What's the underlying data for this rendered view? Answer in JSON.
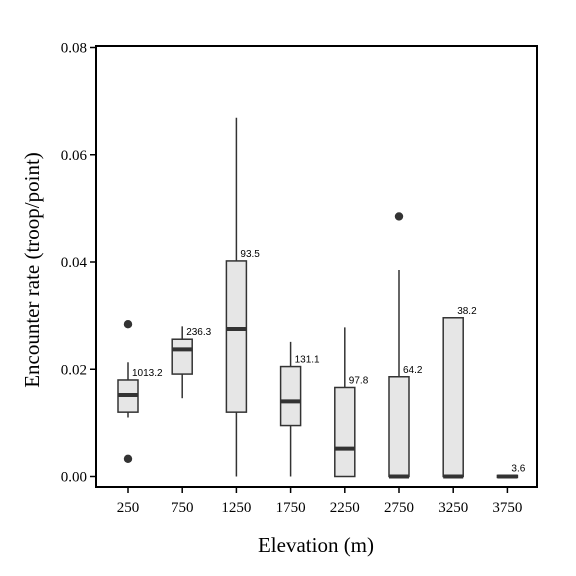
{
  "chart_data": {
    "type": "box",
    "xlabel": "Elevation (m)",
    "ylabel": "Encounter rate (troop/point)",
    "ylim": [
      0,
      0.08
    ],
    "yticks": [
      0.0,
      0.02,
      0.04,
      0.06,
      0.08
    ],
    "ytick_labels": [
      "0.00",
      "0.02",
      "0.04",
      "0.06",
      "0.08"
    ],
    "grid": false,
    "categories": [
      "250",
      "750",
      "1250",
      "1750",
      "2250",
      "2750",
      "3250",
      "3750"
    ],
    "boxes": [
      {
        "category": "250",
        "whisker_low": 0.011,
        "q1": 0.012,
        "median": 0.0152,
        "q3": 0.018,
        "whisker_high": 0.0213,
        "outliers": [
          0.0284,
          0.0033
        ],
        "label": "1013.2"
      },
      {
        "category": "750",
        "whisker_low": 0.0146,
        "q1": 0.0191,
        "median": 0.0237,
        "q3": 0.0256,
        "whisker_high": 0.028,
        "outliers": [],
        "label": "236.3"
      },
      {
        "category": "1250",
        "whisker_low": 0.0,
        "q1": 0.012,
        "median": 0.0275,
        "q3": 0.0402,
        "whisker_high": 0.0669,
        "outliers": [],
        "label": "93.5"
      },
      {
        "category": "1750",
        "whisker_low": 0.0,
        "q1": 0.0095,
        "median": 0.014,
        "q3": 0.0205,
        "whisker_high": 0.0251,
        "outliers": [],
        "label": "131.1"
      },
      {
        "category": "2250",
        "whisker_low": 0.0,
        "q1": 0.0,
        "median": 0.0052,
        "q3": 0.0166,
        "whisker_high": 0.0278,
        "outliers": [],
        "label": "97.8"
      },
      {
        "category": "2750",
        "whisker_low": 0.0,
        "q1": 0.0,
        "median": 0.0,
        "q3": 0.0186,
        "whisker_high": 0.0385,
        "outliers": [
          0.0485
        ],
        "label": "64.2"
      },
      {
        "category": "3250",
        "whisker_low": 0.0,
        "q1": 0.0,
        "median": 0.0,
        "q3": 0.0296,
        "whisker_high": 0.0296,
        "outliers": [],
        "label": "38.2"
      },
      {
        "category": "3750",
        "whisker_low": 0.0,
        "q1": 0.0,
        "median": 0.0,
        "q3": 0.0002,
        "whisker_high": 0.0002,
        "outliers": [],
        "label": "3.6"
      }
    ],
    "colors": {
      "box_fill": "#e6e6e6",
      "stroke": "#333333",
      "median": "#333333",
      "outlier": "#333333"
    }
  }
}
